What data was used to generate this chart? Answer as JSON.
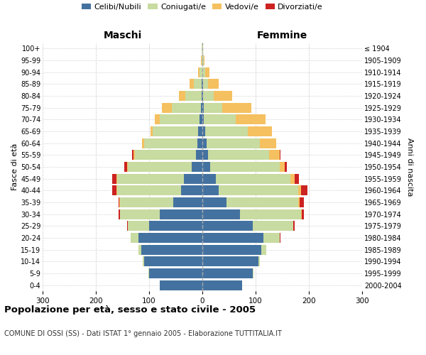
{
  "age_groups": [
    "0-4",
    "5-9",
    "10-14",
    "15-19",
    "20-24",
    "25-29",
    "30-34",
    "35-39",
    "40-44",
    "45-49",
    "50-54",
    "55-59",
    "60-64",
    "65-69",
    "70-74",
    "75-79",
    "80-84",
    "85-89",
    "90-94",
    "95-99",
    "100+"
  ],
  "birth_years": [
    "2000-2004",
    "1995-1999",
    "1990-1994",
    "1985-1989",
    "1980-1984",
    "1975-1979",
    "1970-1974",
    "1965-1969",
    "1960-1964",
    "1955-1959",
    "1950-1954",
    "1945-1949",
    "1940-1944",
    "1935-1939",
    "1930-1934",
    "1925-1929",
    "1920-1924",
    "1915-1919",
    "1910-1914",
    "1905-1909",
    "≤ 1904"
  ],
  "male": {
    "celibi": [
      80,
      100,
      110,
      115,
      120,
      100,
      80,
      55,
      40,
      35,
      20,
      12,
      10,
      8,
      5,
      3,
      2,
      1,
      0,
      0,
      0
    ],
    "coniugati": [
      0,
      1,
      2,
      5,
      15,
      40,
      75,
      100,
      120,
      125,
      120,
      115,
      100,
      85,
      75,
      55,
      30,
      15,
      5,
      2,
      1
    ],
    "vedovi": [
      0,
      0,
      0,
      0,
      0,
      0,
      0,
      1,
      1,
      2,
      2,
      2,
      3,
      5,
      10,
      18,
      12,
      8,
      3,
      1,
      0
    ],
    "divorziati": [
      0,
      0,
      0,
      0,
      0,
      1,
      2,
      2,
      8,
      8,
      5,
      3,
      1,
      0,
      0,
      0,
      0,
      0,
      0,
      0,
      0
    ]
  },
  "female": {
    "nubili": [
      75,
      95,
      105,
      110,
      115,
      95,
      70,
      45,
      30,
      25,
      15,
      10,
      8,
      5,
      3,
      2,
      1,
      1,
      0,
      0,
      0
    ],
    "coniugate": [
      0,
      1,
      3,
      10,
      30,
      75,
      115,
      135,
      150,
      140,
      130,
      115,
      100,
      80,
      60,
      35,
      20,
      10,
      5,
      2,
      1
    ],
    "vedove": [
      0,
      0,
      0,
      0,
      0,
      1,
      1,
      2,
      5,
      8,
      10,
      20,
      30,
      45,
      55,
      55,
      35,
      20,
      8,
      2,
      0
    ],
    "divorziate": [
      0,
      0,
      0,
      0,
      1,
      2,
      5,
      8,
      12,
      8,
      3,
      2,
      1,
      0,
      0,
      0,
      0,
      0,
      0,
      0,
      0
    ]
  },
  "colors": {
    "celibi": "#4472a0",
    "coniugati": "#c8dba0",
    "vedovi": "#f5c060",
    "divorziati": "#cc2222"
  },
  "xlim": 300,
  "title": "Popolazione per età, sesso e stato civile - 2005",
  "subtitle": "COMUNE DI OSSI (SS) - Dati ISTAT 1° gennaio 2005 - Elaborazione TUTTITALIA.IT",
  "ylabel_left": "Fasce di età",
  "ylabel_right": "Anni di nascita",
  "xlabel_left": "Maschi",
  "xlabel_right": "Femmine"
}
